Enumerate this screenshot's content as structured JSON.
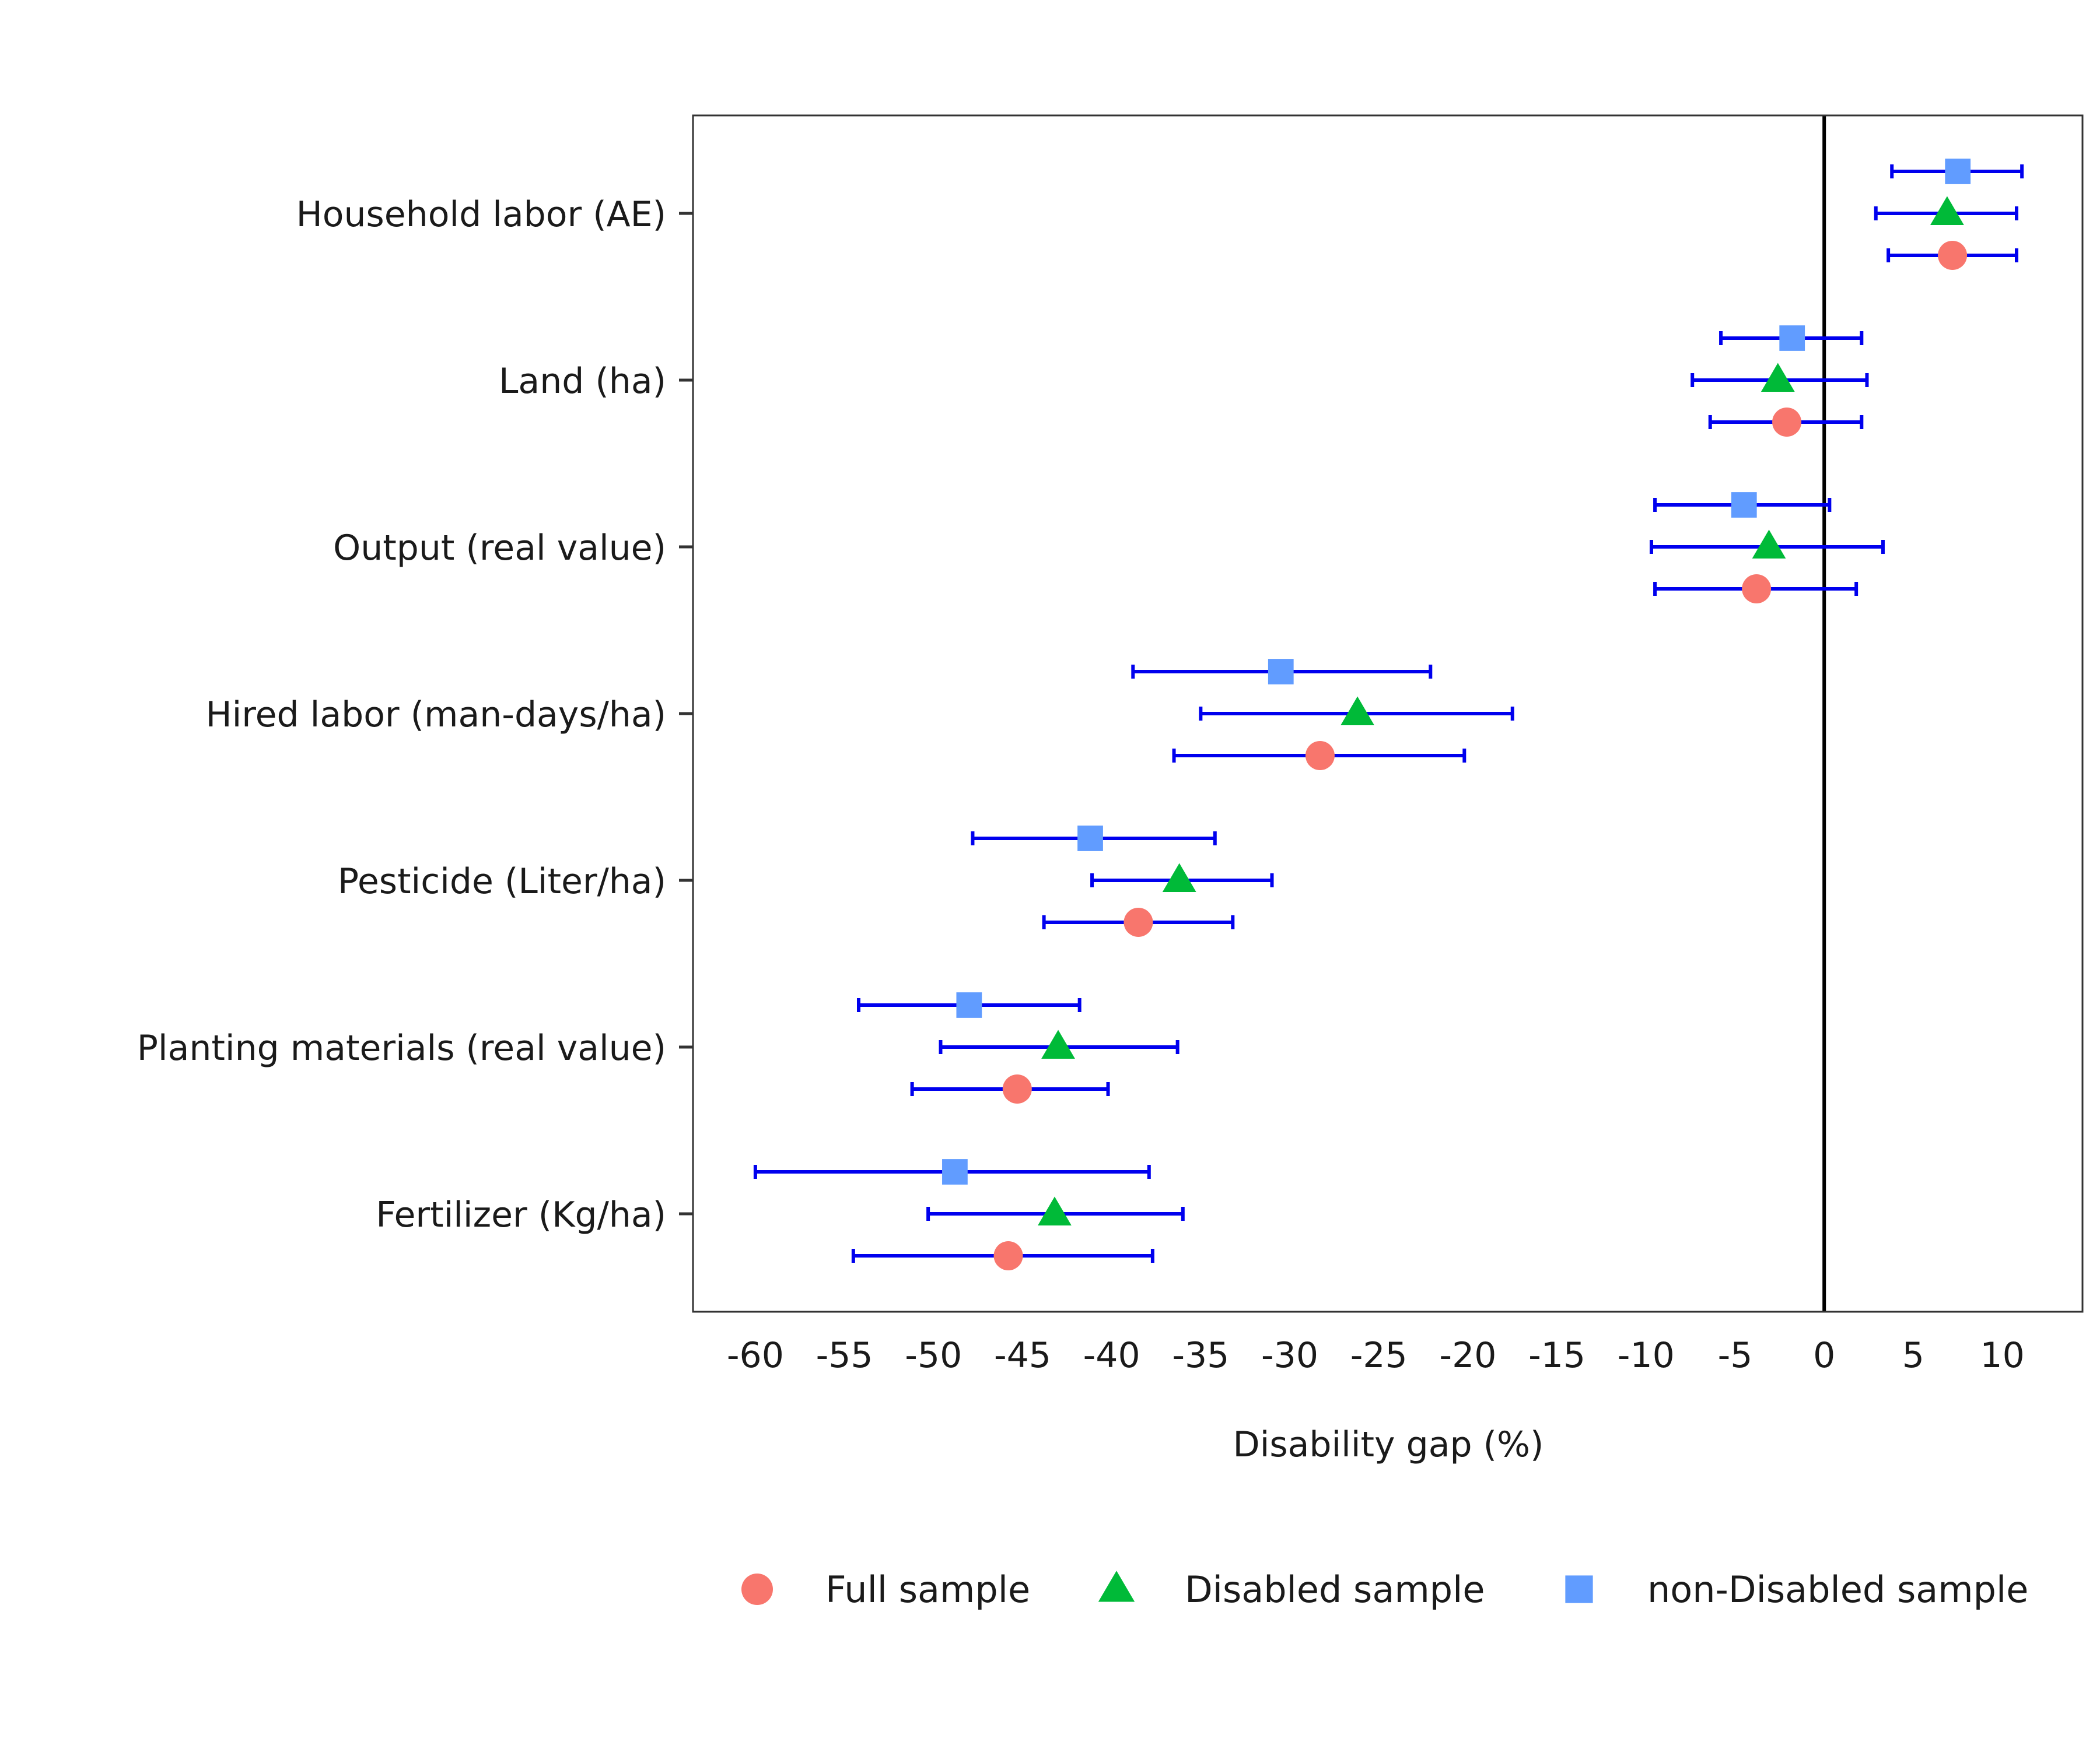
{
  "chart_data": {
    "type": "scatter",
    "orientation": "horizontal",
    "xlabel": "Disability gap (%)",
    "ylabel": "",
    "xlim": [
      -63.5,
      14.5
    ],
    "xticks": [
      -60,
      -55,
      -50,
      -45,
      -40,
      -35,
      -30,
      -25,
      -20,
      -15,
      -10,
      -5,
      0,
      5,
      10
    ],
    "reference_line_x": 0,
    "grid": false,
    "legend_position": "bottom",
    "categories": [
      "Household labor (AE)",
      "Land (ha)",
      "Output (real value)",
      "Hired labor (man-days/ha)",
      "Pesticide (Liter/ha)",
      "Planting materials (real value)",
      "Fertilizer (Kg/ha)"
    ],
    "series": [
      {
        "name": "Full sample",
        "marker": "circle",
        "color": "#F8766D",
        "values": [
          7.2,
          -2.1,
          -3.8,
          -28.3,
          -38.5,
          -45.3,
          -45.8
        ],
        "ci_low": [
          3.6,
          -6.4,
          -9.5,
          -36.5,
          -43.8,
          -51.2,
          -54.5
        ],
        "ci_high": [
          10.8,
          2.1,
          1.8,
          -20.2,
          -33.2,
          -40.2,
          -37.7
        ]
      },
      {
        "name": "Disabled sample",
        "marker": "triangle",
        "color": "#00BA38",
        "values": [
          6.9,
          -2.6,
          -3.1,
          -26.2,
          -36.2,
          -43.0,
          -43.2
        ],
        "ci_low": [
          2.9,
          -7.4,
          -9.7,
          -35.0,
          -41.1,
          -49.6,
          -50.3
        ],
        "ci_high": [
          10.8,
          2.4,
          3.3,
          -17.5,
          -31.0,
          -36.3,
          -36.0
        ]
      },
      {
        "name": "non-Disabled sample",
        "marker": "square",
        "color": "#619CFF",
        "values": [
          7.5,
          -1.8,
          -4.5,
          -30.5,
          -41.2,
          -48.0,
          -48.8
        ],
        "ci_low": [
          3.8,
          -5.8,
          -9.5,
          -38.8,
          -47.8,
          -54.2,
          -60.0
        ],
        "ci_high": [
          11.1,
          2.1,
          0.3,
          -22.1,
          -34.2,
          -41.8,
          -37.9
        ]
      }
    ],
    "errorbar_color": "#0000EE"
  }
}
